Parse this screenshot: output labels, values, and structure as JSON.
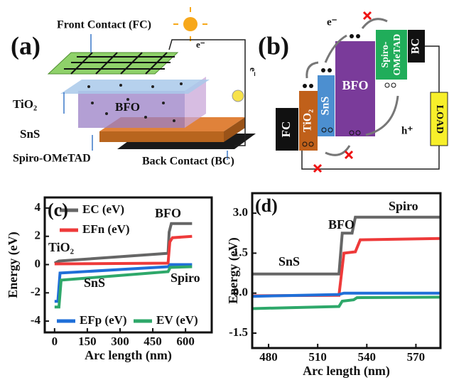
{
  "panels": {
    "a": {
      "label": "(a)",
      "front_contact": "Front Contact (FC)",
      "tio2": "TiO₂",
      "bfo": "BFO",
      "sns": "SnS",
      "spiro": "Spiro-OMeTAD",
      "back_contact": "Back Contact (BC)",
      "electron_top": "e⁻",
      "electron_side": "e⁻"
    },
    "b": {
      "label": "(b)",
      "fc": "FC",
      "tio2": "TiO₂",
      "sns": "SnS",
      "bfo": "BFO",
      "spiro_1": "Spiro-",
      "spiro_2": "OMeTAD",
      "bc": "BC",
      "load": "LOAD",
      "electron": "e⁻",
      "hole": "h⁺"
    }
  },
  "chart_data": [
    {
      "type": "line",
      "label": "(c)",
      "xlabel": "Arc length (nm)",
      "ylabel": "Energy (eV)",
      "xlim": [
        -45,
        720
      ],
      "xticks": [
        0,
        150,
        300,
        450,
        600
      ],
      "ylim": [
        -4.8,
        4.75
      ],
      "yticks": [
        -4,
        -2,
        0,
        2,
        4
      ],
      "annotations": [
        "TiO₂",
        "BFO",
        "SnS",
        "Spiro"
      ],
      "series": [
        {
          "name": "EC (eV)",
          "color": "#666666",
          "x": [
            0,
            20,
            520,
            525,
            535,
            630
          ],
          "values": [
            0.1,
            0.25,
            0.8,
            2.3,
            2.9,
            2.9
          ]
        },
        {
          "name": "EFn (eV)",
          "color": "#ee3a3a",
          "x": [
            0,
            520,
            528,
            540,
            630
          ],
          "values": [
            0.05,
            0.1,
            1.6,
            1.9,
            2.0
          ]
        },
        {
          "name": "EFp (eV)",
          "color": "#1f6fd8",
          "x": [
            0,
            15,
            25,
            520,
            530,
            630
          ],
          "values": [
            -2.6,
            -2.6,
            -0.6,
            -0.15,
            0,
            0
          ]
        },
        {
          "name": "EV (eV)",
          "color": "#2ea86a",
          "x": [
            0,
            20,
            30,
            520,
            530,
            630
          ],
          "values": [
            -3.0,
            -3.0,
            -1.1,
            -0.5,
            -0.2,
            -0.15
          ]
        }
      ]
    },
    {
      "type": "line",
      "label": "(d)",
      "xlabel": "Arc length (nm)",
      "ylabel": "Energy (eV)",
      "xlim": [
        470,
        585
      ],
      "xticks": [
        480,
        510,
        540,
        570
      ],
      "ylim": [
        -2.06,
        3.75
      ],
      "yticks": [
        {
          "value": 3,
          "label": "3.0"
        },
        1.5,
        {
          "value": 0,
          "label": "0.0"
        },
        -1.5
      ],
      "annotations": [
        "Spiro",
        "BFO",
        "SnS"
      ],
      "series": [
        {
          "color": "#666666",
          "x": [
            470,
            523,
            525,
            531,
            533,
            585
          ],
          "values": [
            0.72,
            0.72,
            2.25,
            2.25,
            2.85,
            2.85
          ]
        },
        {
          "color": "#ee3a3a",
          "x": [
            470,
            523,
            526,
            533,
            536,
            585
          ],
          "values": [
            -0.1,
            -0.08,
            1.5,
            1.55,
            2.0,
            2.05
          ]
        },
        {
          "color": "#1f6fd8",
          "x": [
            470,
            523,
            526,
            585
          ],
          "values": [
            -0.12,
            -0.05,
            0,
            0
          ]
        },
        {
          "color": "#2ea86a",
          "x": [
            470,
            523,
            525,
            532,
            534,
            585
          ],
          "values": [
            -0.58,
            -0.5,
            -0.3,
            -0.25,
            -0.17,
            -0.15
          ]
        }
      ]
    }
  ]
}
